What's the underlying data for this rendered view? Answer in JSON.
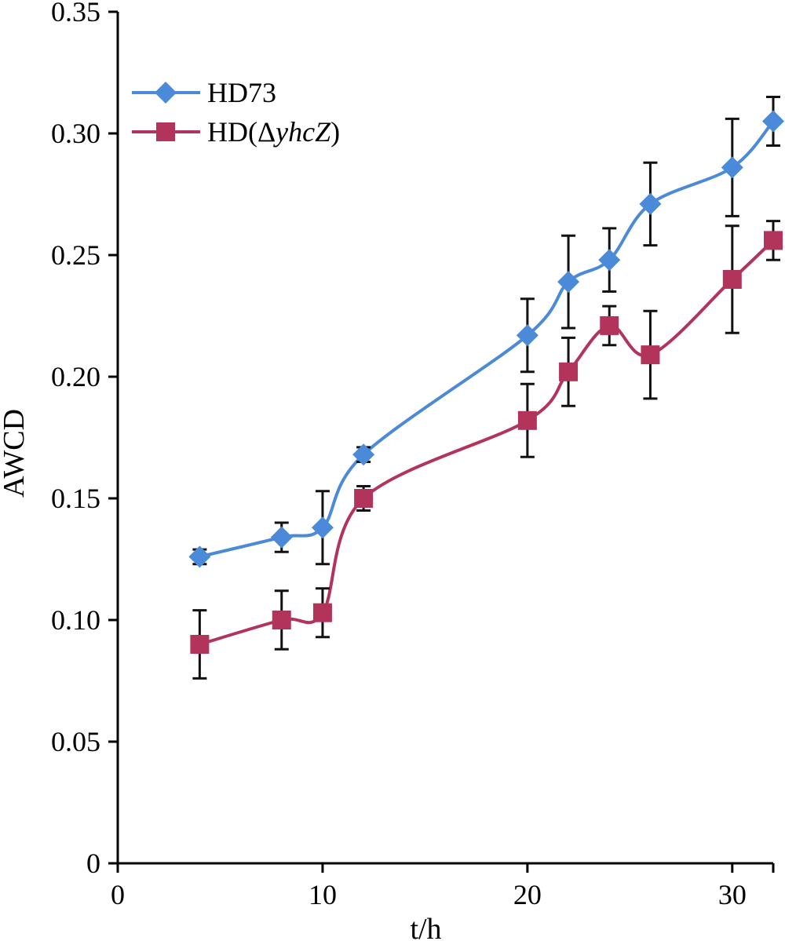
{
  "chart_data": {
    "type": "line",
    "title": "",
    "xlabel": "t/h",
    "ylabel": "AWCD",
    "xlim": [
      0,
      32
    ],
    "ylim": [
      0,
      0.35
    ],
    "x_ticks": [
      0,
      10,
      20,
      30
    ],
    "x_tick_labels": [
      "0",
      "10",
      "20",
      "30"
    ],
    "y_ticks": [
      0,
      0.05,
      0.1,
      0.15,
      0.2,
      0.25,
      0.3,
      0.35
    ],
    "y_tick_labels": [
      "0",
      "0.05",
      "0.10",
      "0.15",
      "0.20",
      "0.25",
      "0.30",
      "0.35"
    ],
    "grid": false,
    "legend_position": "top-left",
    "x": [
      4,
      8,
      10,
      12,
      20,
      22,
      24,
      26,
      30,
      32
    ],
    "series": [
      {
        "name": "HD73",
        "legend_prefix": "HD73",
        "legend_italic": "",
        "legend_suffix": "",
        "color": "#4a8ad9",
        "marker": "diamond",
        "values": [
          0.126,
          0.134,
          0.138,
          0.168,
          0.217,
          0.239,
          0.248,
          0.271,
          0.286,
          0.305
        ],
        "errors": [
          0.003,
          0.006,
          0.015,
          0.003,
          0.015,
          0.019,
          0.013,
          0.017,
          0.02,
          0.01
        ]
      },
      {
        "name": "HD(ΔyhcZ)",
        "legend_prefix": "HD(Δ",
        "legend_italic": "yhcZ",
        "legend_suffix": ")",
        "color": "#b3345a",
        "marker": "square",
        "values": [
          0.09,
          0.1,
          0.103,
          0.15,
          0.182,
          0.202,
          0.221,
          0.209,
          0.24,
          0.256
        ],
        "errors": [
          0.014,
          0.012,
          0.01,
          0.005,
          0.015,
          0.014,
          0.008,
          0.018,
          0.022,
          0.008
        ]
      }
    ]
  }
}
